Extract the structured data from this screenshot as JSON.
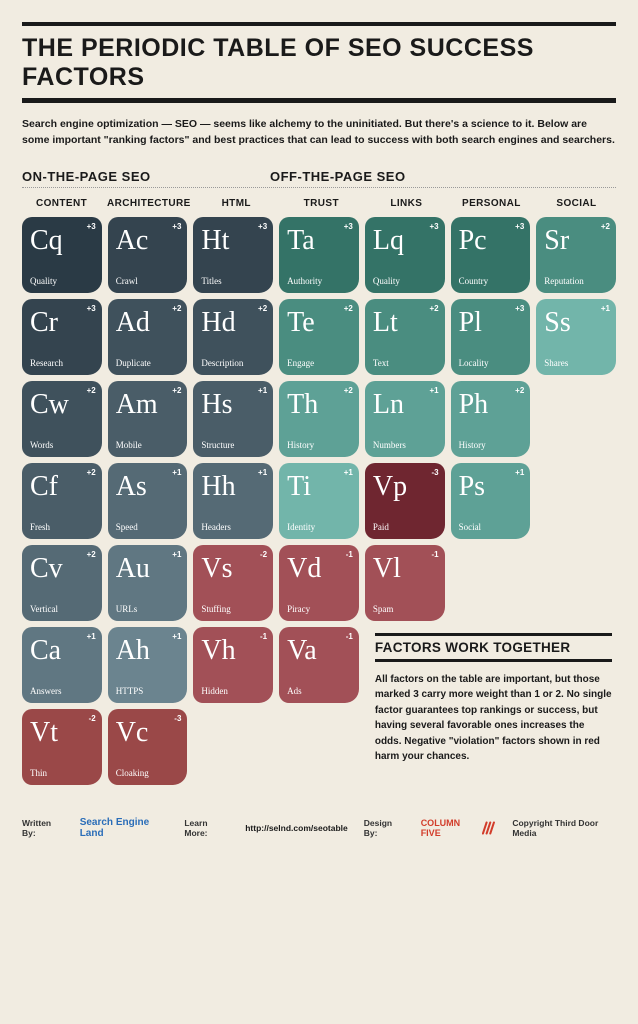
{
  "title": "THE PERIODIC TABLE OF SEO SUCCESS FACTORS",
  "intro": "Search engine optimization — SEO — seems like alchemy to the uninitiated. But there's a science to it. Below are some important \"ranking factors\" and best practices that can lead to success with both search engines and searchers.",
  "section_on": "ON-THE-PAGE SEO",
  "section_off": "OFF-THE-PAGE SEO",
  "columns": [
    "CONTENT",
    "ARCHITECTURE",
    "HTML",
    "TRUST",
    "LINKS",
    "PERSONAL",
    "SOCIAL"
  ],
  "palette": {
    "content": [
      "#2a3a45",
      "#34444f",
      "#3f515c",
      "#4a5d68",
      "#556a75",
      "#607782",
      "#9a4848"
    ],
    "architecture": [
      "#34444f",
      "#3f515c",
      "#4a5d68",
      "#556a75",
      "#607782",
      "#6b848f",
      "#9a4848"
    ],
    "html": [
      "#34444f",
      "#3f515c",
      "#4a5d68",
      "#556a75",
      "#a25057",
      "#a25057"
    ],
    "trust": [
      "#347367",
      "#4a8d80",
      "#5ea196",
      "#72b5aa",
      "#a25057",
      "#a25057"
    ],
    "links": [
      "#347367",
      "#4a8d80",
      "#5ea196",
      "#6f2630",
      "#a25057"
    ],
    "personal": [
      "#347367",
      "#4a8d80",
      "#5ea196",
      "#5ea196"
    ],
    "social": [
      "#4a8d80",
      "#72b5aa"
    ]
  },
  "shadow_darken": 0.75,
  "cells": [
    [
      {
        "sym": "Cq",
        "name": "Quality",
        "score": "+3",
        "col": "content",
        "shade": 0
      },
      {
        "sym": "Ac",
        "name": "Crawl",
        "score": "+3",
        "col": "architecture",
        "shade": 0
      },
      {
        "sym": "Ht",
        "name": "Titles",
        "score": "+3",
        "col": "html",
        "shade": 0
      },
      {
        "sym": "Ta",
        "name": "Authority",
        "score": "+3",
        "col": "trust",
        "shade": 0
      },
      {
        "sym": "Lq",
        "name": "Quality",
        "score": "+3",
        "col": "links",
        "shade": 0
      },
      {
        "sym": "Pc",
        "name": "Country",
        "score": "+3",
        "col": "personal",
        "shade": 0
      },
      {
        "sym": "Sr",
        "name": "Reputation",
        "score": "+2",
        "col": "social",
        "shade": 0
      }
    ],
    [
      {
        "sym": "Cr",
        "name": "Research",
        "score": "+3",
        "col": "content",
        "shade": 1
      },
      {
        "sym": "Ad",
        "name": "Duplicate",
        "score": "+2",
        "col": "architecture",
        "shade": 1
      },
      {
        "sym": "Hd",
        "name": "Description",
        "score": "+2",
        "col": "html",
        "shade": 1
      },
      {
        "sym": "Te",
        "name": "Engage",
        "score": "+2",
        "col": "trust",
        "shade": 1
      },
      {
        "sym": "Lt",
        "name": "Text",
        "score": "+2",
        "col": "links",
        "shade": 1
      },
      {
        "sym": "Pl",
        "name": "Locality",
        "score": "+3",
        "col": "personal",
        "shade": 1
      },
      {
        "sym": "Ss",
        "name": "Shares",
        "score": "+1",
        "col": "social",
        "shade": 1
      }
    ],
    [
      {
        "sym": "Cw",
        "name": "Words",
        "score": "+2",
        "col": "content",
        "shade": 2
      },
      {
        "sym": "Am",
        "name": "Mobile",
        "score": "+2",
        "col": "architecture",
        "shade": 2
      },
      {
        "sym": "Hs",
        "name": "Structure",
        "score": "+1",
        "col": "html",
        "shade": 2
      },
      {
        "sym": "Th",
        "name": "History",
        "score": "+2",
        "col": "trust",
        "shade": 2
      },
      {
        "sym": "Ln",
        "name": "Numbers",
        "score": "+1",
        "col": "links",
        "shade": 2
      },
      {
        "sym": "Ph",
        "name": "History",
        "score": "+2",
        "col": "personal",
        "shade": 2
      },
      null
    ],
    [
      {
        "sym": "Cf",
        "name": "Fresh",
        "score": "+2",
        "col": "content",
        "shade": 3
      },
      {
        "sym": "As",
        "name": "Speed",
        "score": "+1",
        "col": "architecture",
        "shade": 3
      },
      {
        "sym": "Hh",
        "name": "Headers",
        "score": "+1",
        "col": "html",
        "shade": 3
      },
      {
        "sym": "Ti",
        "name": "Identity",
        "score": "+1",
        "col": "trust",
        "shade": 3
      },
      {
        "sym": "Vp",
        "name": "Paid",
        "score": "-3",
        "col": "links",
        "shade": 3
      },
      {
        "sym": "Ps",
        "name": "Social",
        "score": "+1",
        "col": "personal",
        "shade": 3
      },
      null
    ],
    [
      {
        "sym": "Cv",
        "name": "Vertical",
        "score": "+2",
        "col": "content",
        "shade": 4
      },
      {
        "sym": "Au",
        "name": "URLs",
        "score": "+1",
        "col": "architecture",
        "shade": 4
      },
      {
        "sym": "Vs",
        "name": "Stuffing",
        "score": "-2",
        "col": "html",
        "shade": 4
      },
      {
        "sym": "Vd",
        "name": "Piracy",
        "score": "-1",
        "col": "trust",
        "shade": 4
      },
      {
        "sym": "Vl",
        "name": "Spam",
        "score": "-1",
        "col": "links",
        "shade": 4
      },
      null,
      null
    ],
    [
      {
        "sym": "Ca",
        "name": "Answers",
        "score": "+1",
        "col": "content",
        "shade": 5
      },
      {
        "sym": "Ah",
        "name": "HTTPS",
        "score": "+1",
        "col": "architecture",
        "shade": 5
      },
      {
        "sym": "Vh",
        "name": "Hidden",
        "score": "-1",
        "col": "html",
        "shade": 5
      },
      {
        "sym": "Va",
        "name": "Ads",
        "score": "-1",
        "col": "trust",
        "shade": 5
      },
      null,
      null,
      null
    ],
    [
      {
        "sym": "Vt",
        "name": "Thin",
        "score": "-2",
        "col": "content",
        "shade": 6
      },
      {
        "sym": "Vc",
        "name": "Cloaking",
        "score": "-3",
        "col": "architecture",
        "shade": 6
      },
      null,
      null,
      null,
      null,
      null
    ]
  ],
  "sidebox": {
    "title": "FACTORS WORK TOGETHER",
    "body": "All factors on the table are important, but those marked 3 carry more weight than 1 or 2. No single factor guarantees top rankings or success, but having several favorable ones increases the odds. Negative \"violation\" factors shown in red harm your chances."
  },
  "footer": {
    "written_label": "Written By:",
    "written_by": "Search Engine Land",
    "learn_label": "Learn More:",
    "learn_url": "http://selnd.com/seotable",
    "design_label": "Design By:",
    "design_by": "COLUMN FIVE",
    "copyright": "Copyright Third Door Media"
  }
}
